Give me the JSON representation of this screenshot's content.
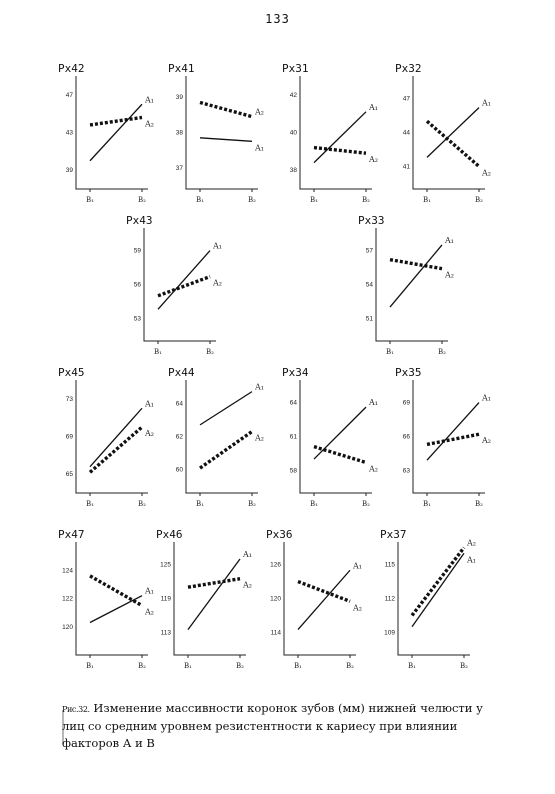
{
  "page": {
    "number": "133"
  },
  "caption": {
    "prefix": "Рис.32.",
    "text": "Изменение массивности коронок зубов (мм) нижней челюсти  у лиц со средним уровнем резистентности к кариесу при влиянии факторов А и В"
  },
  "chart_data": [
    {
      "type": "line",
      "title": "Px42",
      "categories": [
        "B₁",
        "B₂"
      ],
      "yticks": [
        "47",
        "43",
        "39"
      ],
      "ylim": [
        37,
        49
      ],
      "series": [
        {
          "name": "A₁",
          "values": [
            40,
            46
          ],
          "style": "solid"
        },
        {
          "name": "A₂",
          "values": [
            43.8,
            44.6
          ],
          "style": "dotted"
        }
      ]
    },
    {
      "type": "line",
      "title": "Px41",
      "categories": [
        "B₁",
        "B₂"
      ],
      "yticks": [
        "39",
        "38",
        "37"
      ],
      "ylim": [
        36.4,
        39.6
      ],
      "series": [
        {
          "name": "A₁",
          "values": [
            37.85,
            37.75
          ],
          "style": "solid"
        },
        {
          "name": "A₂",
          "values": [
            38.85,
            38.45
          ],
          "style": "dotted"
        }
      ]
    },
    {
      "type": "line",
      "title": "Px31",
      "categories": [
        "B₁",
        "B₂"
      ],
      "yticks": [
        "42",
        "40",
        "38"
      ],
      "ylim": [
        37,
        43
      ],
      "series": [
        {
          "name": "A₁",
          "values": [
            38.4,
            41.1
          ],
          "style": "solid"
        },
        {
          "name": "A₂",
          "values": [
            39.2,
            38.9
          ],
          "style": "dotted"
        }
      ]
    },
    {
      "type": "line",
      "title": "Px32",
      "categories": [
        "B₁",
        "B₂"
      ],
      "yticks": [
        "47",
        "44",
        "41"
      ],
      "ylim": [
        39,
        49
      ],
      "series": [
        {
          "name": "A₁",
          "values": [
            41.8,
            46.2
          ],
          "style": "solid"
        },
        {
          "name": "A₂",
          "values": [
            45,
            41
          ],
          "style": "dotted"
        }
      ]
    },
    {
      "type": "line",
      "title": "Px43",
      "categories": [
        "B₁",
        "B₂"
      ],
      "yticks": [
        "59",
        "56",
        "53"
      ],
      "ylim": [
        51,
        61
      ],
      "series": [
        {
          "name": "A₁",
          "values": [
            53.8,
            59
          ],
          "style": "solid"
        },
        {
          "name": "A₂",
          "values": [
            55,
            56.7
          ],
          "style": "dotted"
        }
      ]
    },
    {
      "type": "line",
      "title": "Px33",
      "categories": [
        "B₁",
        "B₂"
      ],
      "yticks": [
        "57",
        "54",
        "51"
      ],
      "ylim": [
        49,
        59
      ],
      "series": [
        {
          "name": "A₁",
          "values": [
            52,
            57.5
          ],
          "style": "solid"
        },
        {
          "name": "A₂",
          "values": [
            56.2,
            55.4
          ],
          "style": "dotted"
        }
      ]
    },
    {
      "type": "line",
      "title": "Px45",
      "categories": [
        "B₁",
        "B₂"
      ],
      "yticks": [
        "73",
        "69",
        "65"
      ],
      "ylim": [
        63,
        75
      ],
      "series": [
        {
          "name": "A₁",
          "values": [
            65.8,
            72
          ],
          "style": "solid"
        },
        {
          "name": "A₂",
          "values": [
            65.2,
            70
          ],
          "style": "dotted"
        }
      ]
    },
    {
      "type": "line",
      "title": "Px44",
      "categories": [
        "B₁",
        "B₂"
      ],
      "yticks": [
        "64",
        "62",
        "60"
      ],
      "ylim": [
        58.6,
        65.4
      ],
      "series": [
        {
          "name": "A₁",
          "values": [
            62.7,
            64.7
          ],
          "style": "solid"
        },
        {
          "name": "A₂",
          "values": [
            60.1,
            62.3
          ],
          "style": "dotted"
        }
      ]
    },
    {
      "type": "line",
      "title": "Px34",
      "categories": [
        "B₁",
        "B₂"
      ],
      "yticks": [
        "64",
        "61",
        "58"
      ],
      "ylim": [
        56,
        66
      ],
      "series": [
        {
          "name": "A₁",
          "values": [
            59,
            63.6
          ],
          "style": "solid"
        },
        {
          "name": "A₂",
          "values": [
            60.1,
            58.7
          ],
          "style": "dotted"
        }
      ]
    },
    {
      "type": "line",
      "title": "Px35",
      "categories": [
        "B₁",
        "B₂"
      ],
      "yticks": [
        "69",
        "66",
        "63"
      ],
      "ylim": [
        61,
        71
      ],
      "series": [
        {
          "name": "A₁",
          "values": [
            63.9,
            69
          ],
          "style": "solid"
        },
        {
          "name": "A₂",
          "values": [
            65.3,
            66.2
          ],
          "style": "dotted"
        }
      ]
    },
    {
      "type": "line",
      "title": "Px47",
      "categories": [
        "B₁",
        "B₂"
      ],
      "yticks": [
        "124",
        "122",
        "120"
      ],
      "ylim": [
        118,
        126
      ],
      "series": [
        {
          "name": "A₁",
          "values": [
            120.3,
            122.2
          ],
          "style": "solid"
        },
        {
          "name": "A₂",
          "values": [
            123.6,
            121.5
          ],
          "style": "dotted"
        }
      ]
    },
    {
      "type": "line",
      "title": "Px46",
      "categories": [
        "B₁",
        "B₂"
      ],
      "yticks": [
        "125",
        "119",
        "113"
      ],
      "ylim": [
        109,
        129
      ],
      "series": [
        {
          "name": "A₁",
          "values": [
            113.5,
            126
          ],
          "style": "solid"
        },
        {
          "name": "A₂",
          "values": [
            121,
            122.5
          ],
          "style": "dotted"
        }
      ]
    },
    {
      "type": "line",
      "title": "Px36",
      "categories": [
        "B₁",
        "B₂"
      ],
      "yticks": [
        "126",
        "120",
        "114"
      ],
      "ylim": [
        110,
        130
      ],
      "series": [
        {
          "name": "A₁",
          "values": [
            114.5,
            125
          ],
          "style": "solid"
        },
        {
          "name": "A₂",
          "values": [
            123,
            119.5
          ],
          "style": "dotted"
        }
      ]
    },
    {
      "type": "line",
      "title": "Px37",
      "categories": [
        "B₁",
        "B₂"
      ],
      "yticks": [
        "115",
        "112",
        "109"
      ],
      "ylim": [
        107,
        117
      ],
      "series": [
        {
          "name": "A₁",
          "values": [
            109.5,
            116
          ],
          "style": "solid"
        },
        {
          "name": "A₂",
          "values": [
            110.5,
            116.5
          ],
          "style": "dotted"
        }
      ]
    }
  ]
}
